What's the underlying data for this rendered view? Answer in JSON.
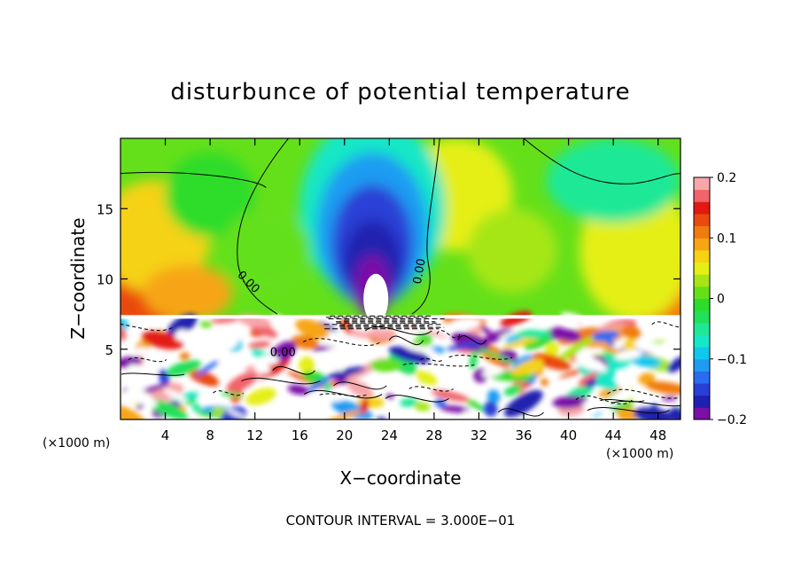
{
  "chart_data": {
    "type": "heatmap",
    "title": "disturbunce of potential temperature",
    "xlabel": "X−coordinate",
    "ylabel": "Z−coordinate",
    "x_unit_left": "(×1000 m)",
    "x_unit_right": "(×1000 m)",
    "footer": "CONTOUR INTERVAL = 3.000E−01",
    "xlim": [
      0,
      50
    ],
    "ylim": [
      0,
      20
    ],
    "x_ticks": [
      4,
      8,
      12,
      16,
      20,
      24,
      28,
      32,
      36,
      40,
      44,
      48
    ],
    "y_ticks": [
      5,
      10,
      15
    ],
    "contour_labels": [
      {
        "text": "0.00",
        "x": 11.2,
        "z": 9.6
      },
      {
        "text": "0.00",
        "x": 27.0,
        "z": 10.5
      },
      {
        "text": "0.00",
        "x": 14.5,
        "z": 4.5
      }
    ],
    "colorbar": {
      "min": -0.2,
      "max": 0.2,
      "ticks": [
        "0.2",
        "0.1",
        "0",
        "−0.1",
        "−0.2"
      ],
      "tick_values": [
        0.2,
        0.1,
        0,
        -0.1,
        -0.2
      ],
      "colors": [
        "#7b0fa8",
        "#2020b0",
        "#2a3fd6",
        "#2b6bf0",
        "#1f9cf2",
        "#10c8ee",
        "#16e7c6",
        "#1ee896",
        "#22e05a",
        "#2ddc2a",
        "#64e01a",
        "#a6e614",
        "#e5ef14",
        "#f5d214",
        "#f7a512",
        "#f07b10",
        "#ea4a10",
        "#e21a12",
        "#f0646a",
        "#f8a6aa"
      ]
    },
    "field_note_values": {
      "background_anomaly": 0.01,
      "cold_plume_center": {
        "x": 22.5,
        "z": 12.5,
        "value": -0.2
      },
      "warm_left_edge": {
        "x": 1,
        "z": 10,
        "value": 0.13
      },
      "warm_right_edge": {
        "x": 49,
        "z": 8.5,
        "value": 0.1
      },
      "turbulent_layer_top_z": 7.3
    }
  }
}
